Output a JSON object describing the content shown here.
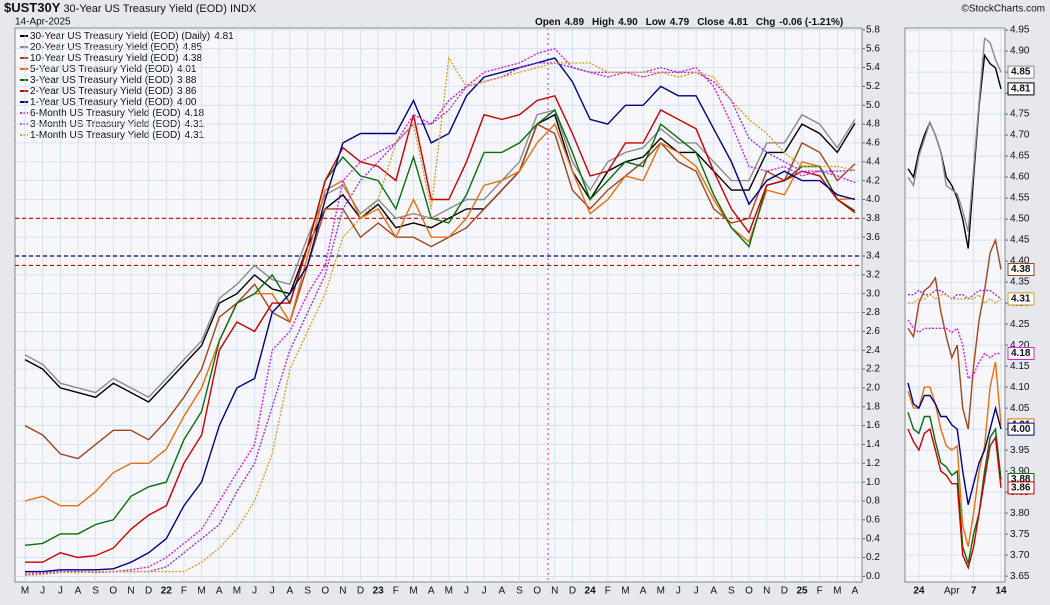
{
  "chart_data": [
    {
      "type": "line",
      "title": "$UST30Y",
      "subtitle": "30-Year US Treasury Yield (EOD)",
      "exchange": "INDX",
      "date": "14-Apr-2025",
      "quote": [
        {
          "label": "Open",
          "value": "4.89"
        },
        {
          "label": "High",
          "value": "4.90"
        },
        {
          "label": "Low",
          "value": "4.79"
        },
        {
          "label": "Close",
          "value": "4.81"
        },
        {
          "label": "Chg",
          "value": "-0.06 (-1.21%)"
        }
      ],
      "watermark": "©StockCharts.com",
      "categories": [
        "M",
        "J",
        "J",
        "A",
        "S",
        "O",
        "N",
        "D",
        "22",
        "F",
        "M",
        "A",
        "M",
        "J",
        "J",
        "A",
        "S",
        "O",
        "N",
        "D",
        "23",
        "F",
        "M",
        "A",
        "M",
        "J",
        "J",
        "A",
        "S",
        "O",
        "N",
        "D",
        "24",
        "F",
        "M",
        "A",
        "M",
        "J",
        "J",
        "A",
        "S",
        "O",
        "N",
        "D",
        "25",
        "F",
        "M",
        "A"
      ],
      "ylim": [
        -0.06,
        5.82
      ],
      "yticks": [
        {
          "value": 0,
          "label": "0.0"
        },
        0.2,
        0.4,
        0.6,
        0.8,
        {
          "value": 1,
          "label": "1.0"
        },
        1.2,
        1.4,
        1.6,
        1.8,
        {
          "value": 2,
          "label": "2.0"
        },
        2.2,
        2.4,
        2.6,
        2.8,
        {
          "value": 3,
          "label": "3.0"
        },
        3.2,
        3.4,
        3.6,
        3.8,
        {
          "value": 4,
          "label": "4.0"
        },
        4.2,
        4.4,
        4.6,
        4.8,
        {
          "value": 5,
          "label": "5.0"
        },
        5.2,
        5.4,
        5.6,
        5.8
      ],
      "grid": true,
      "hlines": [
        {
          "value": 3.8,
          "color": "#cc0000"
        },
        {
          "value": 3.4,
          "color": "#000080"
        },
        {
          "value": 3.3,
          "color": "#cc0000"
        }
      ],
      "series": [
        {
          "name": "30-Year US Treasury Yield (EOD) (Daily)",
          "last_label": "4.81",
          "color": "#000000",
          "style": "solid",
          "values": [
            2.3,
            2.2,
            2.0,
            1.95,
            1.9,
            2.05,
            1.95,
            1.85,
            2.05,
            2.25,
            2.45,
            2.9,
            3.0,
            3.2,
            3.05,
            3.0,
            3.5,
            3.9,
            4.05,
            3.8,
            3.95,
            3.7,
            3.75,
            3.7,
            3.8,
            3.9,
            3.9,
            4.1,
            4.3,
            4.8,
            4.9,
            4.3,
            4.0,
            4.3,
            4.4,
            4.45,
            4.65,
            4.5,
            4.5,
            4.3,
            4.1,
            4.1,
            4.5,
            4.5,
            4.8,
            4.7,
            4.5,
            4.81
          ]
        },
        {
          "name": "20-Year US Treasury Yield (EOD)",
          "last_label": "4.85",
          "color": "#8c8c8c",
          "style": "solid",
          "values": [
            2.35,
            2.25,
            2.05,
            2.0,
            1.95,
            2.1,
            2.0,
            1.9,
            2.1,
            2.3,
            2.5,
            2.95,
            3.1,
            3.3,
            3.15,
            3.1,
            3.6,
            4.05,
            4.15,
            3.85,
            4.0,
            3.8,
            3.85,
            3.8,
            3.9,
            4.0,
            4.0,
            4.2,
            4.4,
            4.9,
            4.95,
            4.4,
            4.1,
            4.4,
            4.5,
            4.55,
            4.75,
            4.6,
            4.6,
            4.4,
            4.2,
            4.2,
            4.6,
            4.6,
            4.9,
            4.8,
            4.55,
            4.85
          ]
        },
        {
          "name": "10-Year US Treasury Yield (EOD)",
          "last_label": "4.38",
          "color": "#a0461e",
          "style": "solid",
          "values": [
            1.6,
            1.5,
            1.3,
            1.25,
            1.4,
            1.55,
            1.55,
            1.45,
            1.65,
            1.9,
            2.2,
            2.75,
            2.9,
            3.1,
            2.8,
            2.7,
            3.3,
            3.9,
            3.9,
            3.6,
            3.75,
            3.6,
            3.6,
            3.5,
            3.6,
            3.7,
            3.9,
            4.1,
            4.3,
            4.8,
            4.7,
            4.1,
            3.9,
            4.1,
            4.25,
            4.4,
            4.6,
            4.4,
            4.3,
            3.9,
            3.75,
            3.8,
            4.3,
            4.2,
            4.6,
            4.5,
            4.2,
            4.38
          ]
        },
        {
          "name": "5-Year US Treasury Yield (EOD)",
          "last_label": "4.01",
          "color": "#e8700a",
          "style": "solid",
          "values": [
            0.8,
            0.85,
            0.75,
            0.75,
            0.9,
            1.1,
            1.2,
            1.2,
            1.35,
            1.7,
            2.0,
            2.5,
            2.9,
            3.0,
            3.0,
            2.7,
            3.4,
            4.1,
            4.2,
            3.8,
            3.9,
            3.6,
            4.0,
            3.6,
            3.6,
            3.8,
            4.15,
            4.2,
            4.3,
            4.6,
            4.8,
            4.3,
            3.85,
            4.0,
            4.25,
            4.2,
            4.6,
            4.5,
            4.35,
            4.0,
            3.7,
            3.55,
            4.1,
            4.05,
            4.4,
            4.35,
            4.0,
            4.01
          ]
        },
        {
          "name": "3-Year US Treasury Yield (EOD)",
          "last_label": "3.88",
          "color": "#0a6e0a",
          "style": "solid",
          "values": [
            0.33,
            0.35,
            0.45,
            0.45,
            0.55,
            0.6,
            0.85,
            0.95,
            1.0,
            1.45,
            1.75,
            2.5,
            2.9,
            3.0,
            3.2,
            2.9,
            3.5,
            4.2,
            4.45,
            4.25,
            4.2,
            3.9,
            4.45,
            3.8,
            3.75,
            4.05,
            4.5,
            4.5,
            4.6,
            4.8,
            4.95,
            4.5,
            4.0,
            4.2,
            4.4,
            4.35,
            4.8,
            4.65,
            4.5,
            4.05,
            3.7,
            3.5,
            4.15,
            4.2,
            4.35,
            4.35,
            4.0,
            3.88
          ]
        },
        {
          "name": "2-Year US Treasury Yield (EOD)",
          "last_label": "3.86",
          "color": "#cc0000",
          "style": "solid",
          "values": [
            0.15,
            0.15,
            0.25,
            0.2,
            0.22,
            0.3,
            0.5,
            0.65,
            0.75,
            1.2,
            1.5,
            2.4,
            2.7,
            2.6,
            2.9,
            2.9,
            3.5,
            4.2,
            4.55,
            4.4,
            4.35,
            4.2,
            4.9,
            4.0,
            4.0,
            4.4,
            4.9,
            4.85,
            4.9,
            5.05,
            5.1,
            4.7,
            4.25,
            4.3,
            4.6,
            4.6,
            4.95,
            4.85,
            4.75,
            4.3,
            3.9,
            3.65,
            4.15,
            4.2,
            4.3,
            4.25,
            4.0,
            3.86
          ]
        },
        {
          "name": "1-Year US Treasury Yield (EOD)",
          "last_label": "4.00",
          "color": "#000080",
          "style": "solid",
          "values": [
            0.05,
            0.05,
            0.07,
            0.07,
            0.07,
            0.08,
            0.15,
            0.25,
            0.4,
            0.75,
            1.0,
            1.6,
            2.0,
            2.1,
            2.8,
            3.0,
            3.3,
            4.0,
            4.6,
            4.7,
            4.7,
            4.7,
            5.05,
            4.6,
            4.7,
            5.1,
            5.3,
            5.35,
            5.4,
            5.45,
            5.5,
            5.25,
            4.85,
            4.8,
            5.0,
            5.0,
            5.2,
            5.1,
            5.1,
            4.75,
            4.4,
            3.95,
            4.2,
            4.3,
            4.2,
            4.2,
            4.05,
            4.0
          ]
        },
        {
          "name": "6-Month US Treasury Yield (EOD)",
          "last_label": "4.18",
          "color": "#e020e0",
          "style": "dotted",
          "values": [
            0.04,
            0.04,
            0.05,
            0.05,
            0.05,
            0.05,
            0.07,
            0.1,
            0.2,
            0.35,
            0.5,
            0.8,
            1.1,
            1.4,
            2.4,
            2.6,
            3.0,
            3.3,
            4.2,
            4.4,
            4.5,
            4.6,
            4.9,
            4.8,
            4.95,
            5.2,
            5.35,
            5.4,
            5.45,
            5.55,
            5.6,
            5.4,
            5.35,
            5.3,
            5.35,
            5.3,
            5.35,
            5.35,
            5.4,
            5.2,
            4.8,
            4.35,
            4.3,
            4.35,
            4.25,
            4.3,
            4.25,
            4.18
          ]
        },
        {
          "name": "3-Month US Treasury Yield (EOD)",
          "last_label": "4.31",
          "color": "#9a32e0",
          "style": "dotted",
          "values": [
            0.02,
            0.03,
            0.05,
            0.05,
            0.04,
            0.05,
            0.05,
            0.05,
            0.1,
            0.25,
            0.4,
            0.55,
            0.9,
            1.2,
            1.8,
            2.4,
            2.8,
            3.2,
            3.9,
            4.2,
            4.4,
            4.6,
            4.8,
            4.8,
            5.05,
            5.2,
            5.25,
            5.3,
            5.4,
            5.45,
            5.45,
            5.4,
            5.35,
            5.35,
            5.35,
            5.35,
            5.4,
            5.35,
            5.35,
            5.25,
            5.05,
            4.65,
            4.5,
            4.4,
            4.3,
            4.3,
            4.3,
            4.31
          ]
        },
        {
          "name": "1-Month US Treasury Yield (EOD)",
          "last_label": "4.31",
          "color": "#daa030",
          "style": "dotted",
          "values": [
            0.01,
            0.02,
            0.04,
            0.04,
            0.05,
            0.05,
            0.05,
            0.05,
            0.05,
            0.05,
            0.15,
            0.3,
            0.5,
            0.8,
            1.3,
            2.2,
            2.6,
            3.0,
            3.6,
            3.8,
            4.0,
            4.6,
            4.8,
            3.9,
            5.5,
            5.2,
            5.25,
            5.3,
            5.35,
            5.4,
            5.45,
            5.45,
            5.45,
            5.35,
            5.35,
            5.35,
            5.35,
            5.3,
            5.35,
            5.3,
            5.05,
            4.85,
            4.7,
            4.5,
            4.35,
            4.35,
            4.35,
            4.31
          ]
        }
      ]
    },
    {
      "type": "line",
      "categories": [
        null,
        null,
        "24",
        null,
        null,
        null,
        null,
        null,
        "Apr",
        null,
        null,
        null,
        "7",
        null,
        null,
        null,
        null,
        "14"
      ],
      "ylim": [
        3.636,
        4.955
      ],
      "yticks": [
        3.65,
        {
          "value": 3.7,
          "label": "3.70"
        },
        3.75,
        {
          "value": 3.8,
          "label": "3.80"
        },
        3.85,
        {
          "value": 3.9,
          "label": "3.90"
        },
        3.95,
        {
          "value": 4,
          "label": "4.00"
        },
        4.05,
        {
          "value": 4.1,
          "label": "4.10"
        },
        4.15,
        {
          "value": 4.2,
          "label": "4.20"
        },
        4.25,
        {
          "value": 4.3,
          "label": "4.30"
        },
        4.35,
        {
          "value": 4.4,
          "label": "4.40"
        },
        4.45,
        {
          "value": 4.5,
          "label": "4.50"
        },
        4.55,
        {
          "value": 4.6,
          "label": "4.60"
        },
        4.65,
        {
          "value": 4.7,
          "label": "4.70"
        },
        4.75,
        {
          "value": 4.8,
          "label": "4.80"
        },
        4.85,
        {
          "value": 4.9,
          "label": "4.90"
        },
        4.95
      ],
      "grid": true,
      "series": [
        {
          "color": "#000000",
          "style": "solid",
          "last_label": "4.81",
          "values": [
            4.62,
            4.6,
            4.66,
            4.7,
            4.73,
            4.7,
            4.66,
            4.6,
            4.58,
            4.55,
            4.5,
            4.43,
            4.6,
            4.77,
            4.89,
            4.87,
            4.86,
            4.81
          ]
        },
        {
          "color": "#8c8c8c",
          "style": "solid",
          "last_label": "4.85",
          "values": [
            4.6,
            4.58,
            4.65,
            4.69,
            4.73,
            4.7,
            4.66,
            4.58,
            4.57,
            4.56,
            4.52,
            4.47,
            4.62,
            4.78,
            4.93,
            4.92,
            4.88,
            4.85
          ]
        },
        {
          "color": "#a0461e",
          "style": "solid",
          "last_label": "4.38",
          "values": [
            4.24,
            4.22,
            4.3,
            4.33,
            4.34,
            4.36,
            4.28,
            4.22,
            4.17,
            4.2,
            4.05,
            4.0,
            4.15,
            4.26,
            4.33,
            4.42,
            4.45,
            4.38
          ]
        },
        {
          "color": "#e8700a",
          "style": "solid",
          "last_label": "4.01",
          "values": [
            4.09,
            4.05,
            4.05,
            4.1,
            4.1,
            4.06,
            4.0,
            3.96,
            3.95,
            3.96,
            3.77,
            3.72,
            3.8,
            3.9,
            3.96,
            4.1,
            4.16,
            4.01
          ]
        },
        {
          "color": "#0a6e0a",
          "style": "solid",
          "last_label": "3.88",
          "values": [
            4.04,
            4.0,
            3.99,
            4.03,
            4.03,
            3.97,
            3.92,
            3.91,
            3.89,
            3.9,
            3.72,
            3.68,
            3.75,
            3.8,
            3.9,
            3.98,
            4.0,
            3.88
          ]
        },
        {
          "color": "#cc0000",
          "style": "solid",
          "last_label": "3.86",
          "values": [
            4.0,
            3.97,
            3.95,
            3.99,
            4.0,
            3.95,
            3.9,
            3.89,
            3.87,
            3.87,
            3.7,
            3.67,
            3.72,
            3.8,
            3.88,
            3.96,
            3.98,
            3.86
          ]
        },
        {
          "color": "#000080",
          "style": "solid",
          "last_label": "4.00",
          "values": [
            4.11,
            4.06,
            4.05,
            4.08,
            4.08,
            4.06,
            4.03,
            4.03,
            4.01,
            4.0,
            3.9,
            3.82,
            3.87,
            3.92,
            3.95,
            4.0,
            4.05,
            4.0
          ]
        },
        {
          "color": "#e020e0",
          "style": "dotted",
          "last_label": "4.18",
          "values": [
            4.26,
            4.24,
            4.23,
            4.24,
            4.24,
            4.24,
            4.24,
            4.24,
            4.23,
            4.24,
            4.2,
            4.12,
            4.13,
            4.16,
            4.18,
            4.17,
            4.18,
            4.18
          ]
        },
        {
          "color": "#9a32e0",
          "style": "dotted",
          "last_label": "4.31",
          "values": [
            4.32,
            4.32,
            4.33,
            4.32,
            4.32,
            4.33,
            4.33,
            4.32,
            4.31,
            4.32,
            4.32,
            4.31,
            4.32,
            4.33,
            4.33,
            4.33,
            4.32,
            4.31
          ]
        },
        {
          "color": "#daa030",
          "style": "dotted",
          "last_label": "4.31",
          "values": [
            4.3,
            4.3,
            4.31,
            4.31,
            4.32,
            4.31,
            4.32,
            4.32,
            4.31,
            4.31,
            4.31,
            4.31,
            4.31,
            4.32,
            4.3,
            4.31,
            4.3,
            4.31
          ]
        }
      ]
    }
  ]
}
